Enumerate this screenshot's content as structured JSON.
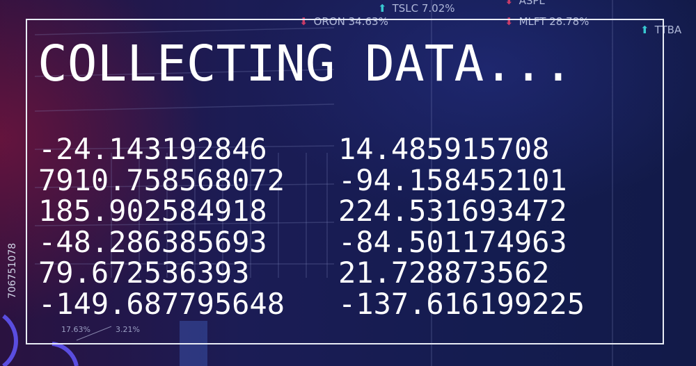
{
  "title": "COLLECTING DATA...",
  "columns": [
    [
      "-24.143192846",
      "7910.758568072",
      "185.902584918",
      "-48.286385693",
      "79.672536393",
      "-149.687795648"
    ],
    [
      "14.485915708",
      "-94.158452101",
      "224.531693472",
      "-84.501174963",
      "21.728873562",
      "-137.616199225"
    ]
  ],
  "tickers": [
    {
      "symbol": "TSLC",
      "change": "7.02%",
      "direction": "up"
    },
    {
      "symbol": "ASPL",
      "change": "",
      "direction": "down"
    },
    {
      "symbol": "ORON",
      "change": "34.63%",
      "direction": "down"
    },
    {
      "symbol": "MLFT",
      "change": "28.78%",
      "direction": "down"
    },
    {
      "symbol": "TTBA",
      "change": "",
      "direction": "up"
    }
  ],
  "chart_labels": [
    "17.63%",
    "3.21%"
  ],
  "watermark_id": "706751078",
  "colors": {
    "up": "#3ee6e6",
    "down": "#e8406a",
    "frame": "#e8ecf5"
  }
}
